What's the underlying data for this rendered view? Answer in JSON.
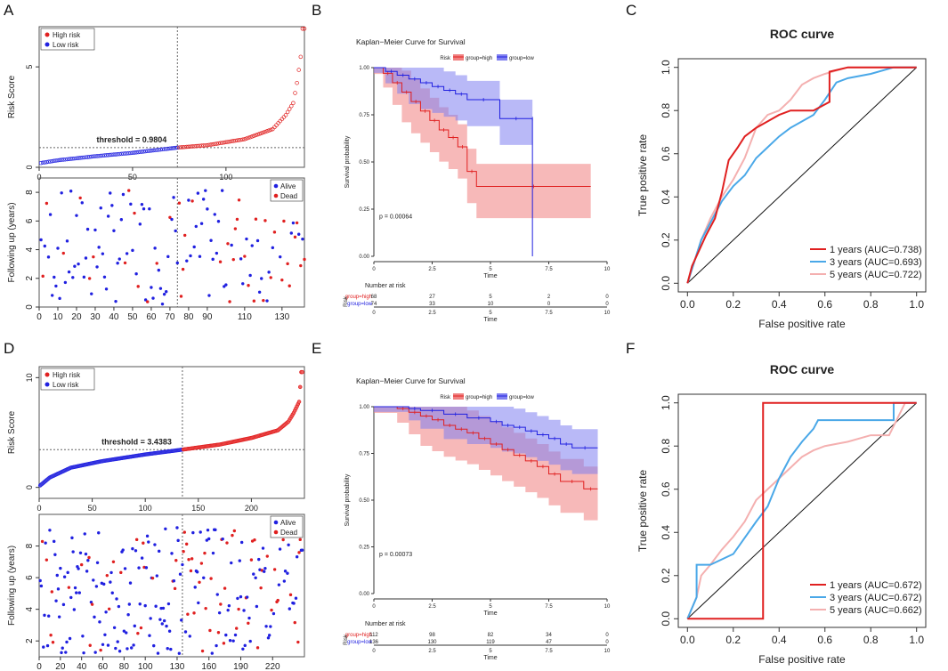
{
  "panel_labels": [
    "A",
    "B",
    "C",
    "D",
    "E",
    "F"
  ],
  "colors": {
    "red": "#e02020",
    "blue": "#2020e0",
    "roc1": "#e02020",
    "roc3": "#4aa8e8",
    "roc5": "#f4b0b0",
    "km_high": "#f08080",
    "km_low": "#8080f0"
  },
  "chart_data": [
    {
      "id": "A_risk",
      "type": "scatter",
      "panel": "A",
      "ylabel": "Risk Score",
      "xticks": [
        "0",
        "50",
        "100"
      ],
      "yticks": [
        "0",
        "5"
      ],
      "xlim": [
        0,
        142
      ],
      "ylim": [
        0,
        7
      ],
      "n": 142,
      "cutoff_index": 74,
      "threshold_label": "threshold = 0.9804",
      "threshold": 0.9804,
      "legend": [
        "High risk",
        "Low risk"
      ],
      "curve_samples": [
        [
          0,
          0.2
        ],
        [
          10,
          0.35
        ],
        [
          30,
          0.55
        ],
        [
          50,
          0.72
        ],
        [
          74,
          0.98
        ],
        [
          90,
          1.1
        ],
        [
          110,
          1.4
        ],
        [
          125,
          1.9
        ],
        [
          132,
          2.6
        ],
        [
          136,
          3.2
        ],
        [
          138,
          4.2
        ],
        [
          140,
          5.5
        ],
        [
          141,
          6.9
        ]
      ]
    },
    {
      "id": "A_follow",
      "type": "scatter",
      "panel": "A",
      "ylabel": "Following up (years)",
      "xticks": [
        "0",
        "10",
        "20",
        "30",
        "40",
        "50",
        "60",
        "70",
        "80",
        "90",
        "110",
        "130"
      ],
      "yticks": [
        "0",
        "2",
        "4",
        "6",
        "8"
      ],
      "xlim": [
        0,
        142
      ],
      "ylim": [
        0,
        9
      ],
      "cutoff_index": 74,
      "legend": [
        "Alive",
        "Dead"
      ]
    },
    {
      "id": "B_km",
      "type": "line",
      "panel": "B",
      "title": "Kaplan−Meier Curve for Survival",
      "legend_title": "Risk",
      "legend": [
        "group=high",
        "group=low"
      ],
      "xlabel": "Time",
      "ylabel": "Survival probability",
      "xticks": [
        "0",
        "2.5",
        "5",
        "7.5",
        "10"
      ],
      "yticks": [
        "0.00",
        "0.25",
        "0.50",
        "0.75",
        "1.00"
      ],
      "xlim": [
        0,
        10
      ],
      "ylim": [
        0,
        1
      ],
      "pvalue": "p = 0.00064",
      "series": [
        {
          "name": "group=high",
          "x": [
            0,
            0.4,
            0.8,
            1.2,
            1.6,
            2.0,
            2.4,
            2.8,
            3.2,
            3.6,
            4.0,
            4.4,
            9.3
          ],
          "y": [
            1,
            0.97,
            0.92,
            0.87,
            0.82,
            0.77,
            0.72,
            0.67,
            0.63,
            0.58,
            0.45,
            0.37,
            0.37
          ]
        },
        {
          "name": "group=low",
          "x": [
            0,
            0.5,
            1.0,
            1.5,
            2.0,
            2.5,
            3.0,
            3.5,
            4.0,
            5.4,
            6.8,
            6.8
          ],
          "y": [
            1,
            0.98,
            0.96,
            0.94,
            0.92,
            0.9,
            0.88,
            0.86,
            0.83,
            0.73,
            0.73,
            0.0
          ]
        }
      ],
      "risk_table": {
        "title": "Number at risk",
        "row_label": "Risk",
        "rows": [
          {
            "name": "group=high",
            "values": [
              "68",
              "27",
              "5",
              "2",
              "0"
            ]
          },
          {
            "name": "group=low",
            "values": [
              "74",
              "33",
              "10",
              "0",
              "0"
            ]
          }
        ],
        "xticks": [
          "0",
          "2.5",
          "5",
          "7.5",
          "10"
        ],
        "xlabel": "Time"
      }
    },
    {
      "id": "C_roc",
      "type": "line",
      "panel": "C",
      "title": "ROC curve",
      "xlabel": "False positive rate",
      "ylabel": "True positive rate",
      "xticks": [
        "0.0",
        "0.2",
        "0.4",
        "0.6",
        "0.8",
        "1.0"
      ],
      "yticks": [
        "0.0",
        "0.2",
        "0.4",
        "0.6",
        "0.8",
        "1.0"
      ],
      "xlim": [
        0,
        1
      ],
      "ylim": [
        0,
        1
      ],
      "series": [
        {
          "name": "1 years (AUC=0.738)",
          "x": [
            0,
            0.02,
            0.05,
            0.08,
            0.12,
            0.15,
            0.18,
            0.22,
            0.25,
            0.3,
            0.35,
            0.4,
            0.45,
            0.5,
            0.55,
            0.62,
            0.62,
            0.7,
            0.8,
            0.9,
            1
          ],
          "y": [
            0,
            0.08,
            0.15,
            0.22,
            0.3,
            0.42,
            0.57,
            0.63,
            0.68,
            0.72,
            0.75,
            0.78,
            0.8,
            0.8,
            0.8,
            0.84,
            0.98,
            1,
            1,
            1,
            1
          ]
        },
        {
          "name": "3 years (AUC=0.693)",
          "x": [
            0,
            0.03,
            0.06,
            0.1,
            0.15,
            0.2,
            0.25,
            0.3,
            0.35,
            0.4,
            0.45,
            0.5,
            0.55,
            0.6,
            0.65,
            0.7,
            0.8,
            0.9,
            1
          ],
          "y": [
            0,
            0.1,
            0.2,
            0.28,
            0.38,
            0.45,
            0.5,
            0.58,
            0.63,
            0.68,
            0.72,
            0.75,
            0.78,
            0.85,
            0.93,
            0.95,
            0.97,
            1,
            1
          ]
        },
        {
          "name": "5 years (AUC=0.722)",
          "x": [
            0,
            0.03,
            0.06,
            0.1,
            0.15,
            0.2,
            0.25,
            0.3,
            0.35,
            0.4,
            0.45,
            0.5,
            0.55,
            0.6,
            0.7,
            0.8,
            0.9,
            1
          ],
          "y": [
            0,
            0.1,
            0.2,
            0.3,
            0.4,
            0.48,
            0.58,
            0.72,
            0.78,
            0.8,
            0.85,
            0.92,
            0.95,
            0.97,
            1,
            1,
            1,
            1
          ]
        }
      ]
    },
    {
      "id": "D_risk",
      "type": "scatter",
      "panel": "D",
      "ylabel": "Risk Score",
      "xticks": [
        "0",
        "50",
        "100",
        "150",
        "200"
      ],
      "yticks": [
        "0",
        "10"
      ],
      "xlim": [
        0,
        250
      ],
      "ylim": [
        -1,
        11
      ],
      "n": 248,
      "cutoff_index": 135,
      "threshold_label": "threshold = 3.4383",
      "threshold": 3.4383,
      "legend": [
        "High risk",
        "Low risk"
      ],
      "curve_samples": [
        [
          0,
          0.1
        ],
        [
          10,
          0.9
        ],
        [
          30,
          1.8
        ],
        [
          60,
          2.4
        ],
        [
          100,
          3.0
        ],
        [
          135,
          3.44
        ],
        [
          170,
          3.9
        ],
        [
          200,
          4.5
        ],
        [
          225,
          5.2
        ],
        [
          235,
          6.0
        ],
        [
          240,
          6.8
        ],
        [
          245,
          7.8
        ],
        [
          247,
          10.5
        ]
      ]
    },
    {
      "id": "D_follow",
      "type": "scatter",
      "panel": "D",
      "ylabel": "Following up (years)",
      "xticks": [
        "0",
        "20",
        "40",
        "60",
        "80",
        "100",
        "130",
        "160",
        "190",
        "220"
      ],
      "yticks": [
        "2",
        "4",
        "6",
        "8"
      ],
      "xlim": [
        0,
        250
      ],
      "ylim": [
        1,
        10
      ],
      "cutoff_index": 135,
      "legend": [
        "Alive",
        "Dead"
      ]
    },
    {
      "id": "E_km",
      "type": "line",
      "panel": "E",
      "title": "Kaplan−Meier Curve for Survival",
      "legend_title": "Risk",
      "legend": [
        "group=high",
        "group=low"
      ],
      "xlabel": "Time",
      "ylabel": "Survival probability",
      "xticks": [
        "0",
        "2.5",
        "5",
        "7.5",
        "10"
      ],
      "yticks": [
        "0.00",
        "0.25",
        "0.50",
        "0.75",
        "1.00"
      ],
      "xlim": [
        0,
        10
      ],
      "ylim": [
        0,
        1
      ],
      "pvalue": "p = 0.00073",
      "series": [
        {
          "name": "group=high",
          "x": [
            0,
            1.0,
            1.5,
            2.0,
            2.5,
            3.0,
            3.5,
            4.0,
            4.5,
            5.0,
            5.5,
            6.0,
            6.5,
            7.0,
            7.5,
            8.0,
            9.0,
            9.6
          ],
          "y": [
            1,
            0.99,
            0.97,
            0.95,
            0.93,
            0.9,
            0.88,
            0.86,
            0.83,
            0.8,
            0.77,
            0.74,
            0.71,
            0.68,
            0.64,
            0.6,
            0.56,
            0.56
          ]
        },
        {
          "name": "group=low",
          "x": [
            0,
            1.5,
            2.0,
            3.0,
            4.0,
            5.0,
            5.5,
            6.0,
            6.5,
            7.0,
            7.5,
            8.0,
            8.5,
            9.6
          ],
          "y": [
            1,
            0.99,
            0.98,
            0.96,
            0.94,
            0.92,
            0.9,
            0.89,
            0.87,
            0.85,
            0.83,
            0.8,
            0.78,
            0.78
          ]
        }
      ],
      "risk_table": {
        "title": "Number at risk",
        "row_label": "Risk",
        "rows": [
          {
            "name": "group=high",
            "values": [
              "112",
              "98",
              "82",
              "34",
              "0"
            ]
          },
          {
            "name": "group=low",
            "values": [
              "136",
              "130",
              "119",
              "47",
              "0"
            ]
          }
        ],
        "xticks": [
          "0",
          "2.5",
          "5",
          "7.5",
          "10"
        ],
        "xlabel": "Time"
      }
    },
    {
      "id": "F_roc",
      "type": "line",
      "panel": "F",
      "title": "ROC curve",
      "xlabel": "False positive rate",
      "ylabel": "True positive rate",
      "xticks": [
        "0.0",
        "0.2",
        "0.4",
        "0.6",
        "0.8",
        "1.0"
      ],
      "yticks": [
        "0.0",
        "0.2",
        "0.4",
        "0.6",
        "0.8",
        "1.0"
      ],
      "xlim": [
        0,
        1
      ],
      "ylim": [
        0,
        1
      ],
      "series": [
        {
          "name": "1 years (AUC=0.672)",
          "x": [
            0,
            0.33,
            0.33,
            1
          ],
          "y": [
            0,
            0,
            1,
            1
          ]
        },
        {
          "name": "3 years (AUC=0.672)",
          "x": [
            0,
            0.04,
            0.04,
            0.1,
            0.2,
            0.3,
            0.35,
            0.4,
            0.45,
            0.5,
            0.55,
            0.57,
            0.7,
            0.8,
            0.9,
            0.9,
            1
          ],
          "y": [
            0,
            0.1,
            0.25,
            0.25,
            0.3,
            0.45,
            0.52,
            0.65,
            0.75,
            0.82,
            0.88,
            0.92,
            0.92,
            0.92,
            0.92,
            1,
            1
          ]
        },
        {
          "name": "5 years (AUC=0.662)",
          "x": [
            0,
            0.04,
            0.06,
            0.1,
            0.15,
            0.2,
            0.25,
            0.3,
            0.35,
            0.4,
            0.45,
            0.5,
            0.55,
            0.6,
            0.7,
            0.8,
            0.88,
            0.95,
            1
          ],
          "y": [
            0,
            0.1,
            0.2,
            0.25,
            0.32,
            0.38,
            0.45,
            0.55,
            0.6,
            0.65,
            0.7,
            0.75,
            0.78,
            0.8,
            0.82,
            0.85,
            0.85,
            1,
            1
          ]
        }
      ]
    }
  ]
}
